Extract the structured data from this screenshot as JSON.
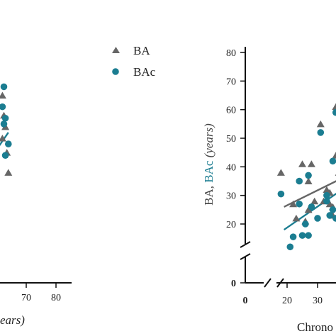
{
  "colors": {
    "ba": "#666666",
    "bac": "#1b7d91",
    "axis": "#111111",
    "text": "#222222"
  },
  "legend": {
    "placement": "top-center",
    "items": [
      {
        "label": "BA",
        "marker": "triangle",
        "color": "#666666"
      },
      {
        "label": "BAc",
        "marker": "circle",
        "color": "#1b7d91"
      }
    ]
  },
  "chart_data": [
    {
      "type": "scatter",
      "visible_part": "right edge of left panel (cropped)",
      "x_ticks": [
        "70",
        "80"
      ],
      "xlabel_fragment": "ears)",
      "series": [
        {
          "name": "BA",
          "marker": "triangle",
          "color": "#666666",
          "points": [
            [
              62,
              65
            ],
            [
              62.5,
              58
            ],
            [
              63,
              54
            ],
            [
              62,
              50
            ],
            [
              63.5,
              45
            ],
            [
              64,
              38
            ]
          ]
        },
        {
          "name": "BAc",
          "marker": "circle",
          "color": "#1b7d91",
          "points": [
            [
              62.5,
              68
            ],
            [
              62,
              61
            ],
            [
              63,
              57
            ],
            [
              62.5,
              55
            ],
            [
              64,
              48
            ],
            [
              63,
              44
            ]
          ]
        }
      ],
      "fit_line": {
        "color": "#1b7d91",
        "x": [
          60,
          64
        ],
        "y": [
          46,
          52
        ]
      }
    },
    {
      "type": "scatter",
      "visible_part": "left portion of right panel (cropped)",
      "ylabel_parts": [
        "BA, ",
        "BAc",
        " (years)"
      ],
      "xlabel_fragment": "Chrono",
      "ylim": [
        0,
        80
      ],
      "y_ticks": [
        "0",
        "20",
        "30",
        "40",
        "50",
        "60",
        "70",
        "80"
      ],
      "x_ticks": [
        "0",
        "20",
        "30"
      ],
      "axis_breaks": "y between 0 and 20; x between 0 and 20",
      "series": [
        {
          "name": "BA",
          "marker": "triangle",
          "color": "#666666",
          "points": [
            [
              18,
              38
            ],
            [
              22,
              27
            ],
            [
              25,
              41
            ],
            [
              23,
              22
            ],
            [
              26,
              21
            ],
            [
              28,
              41
            ],
            [
              27,
              25
            ],
            [
              29,
              28
            ],
            [
              31,
              55
            ],
            [
              33,
              32
            ],
            [
              34,
              31
            ],
            [
              35,
              26
            ],
            [
              36,
              61
            ],
            [
              36,
              44
            ],
            [
              37,
              38
            ],
            [
              37.5,
              45
            ],
            [
              35,
              23
            ],
            [
              34,
              27
            ],
            [
              32,
              28
            ],
            [
              27,
              35
            ]
          ]
        },
        {
          "name": "BAc",
          "marker": "circle",
          "color": "#1b7d91",
          "points": [
            [
              18,
              30.5
            ],
            [
              22,
              15.5
            ],
            [
              21,
              12
            ],
            [
              24,
              35
            ],
            [
              24,
              27
            ],
            [
              25,
              16
            ],
            [
              27,
              16
            ],
            [
              26,
              20
            ],
            [
              27,
              37
            ],
            [
              31,
              52
            ],
            [
              33,
              28
            ],
            [
              34,
              23
            ],
            [
              35,
              25
            ],
            [
              35,
              42
            ],
            [
              36,
              59
            ],
            [
              36,
              22
            ],
            [
              37.5,
              48
            ],
            [
              33,
              30
            ],
            [
              28,
              26
            ],
            [
              30,
              22
            ]
          ]
        }
      ],
      "fit_lines": [
        {
          "series": "BA",
          "color": "#666666",
          "x": [
            19,
            38
          ],
          "y": [
            26,
            36
          ]
        },
        {
          "series": "BAc",
          "color": "#1b7d91",
          "x": [
            19,
            38
          ],
          "y": [
            18,
            32
          ]
        }
      ]
    }
  ]
}
